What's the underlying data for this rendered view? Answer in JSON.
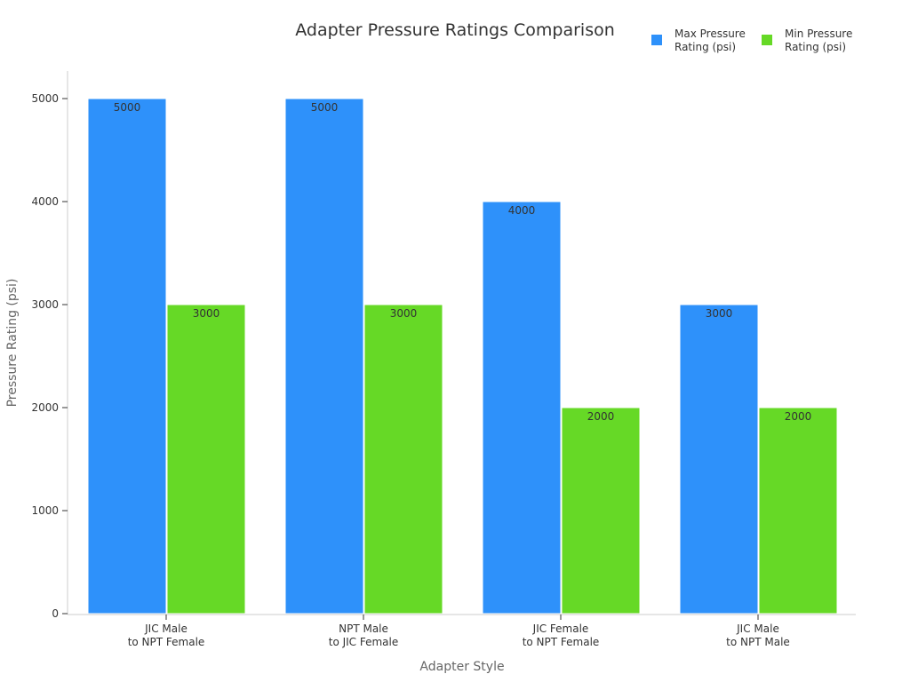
{
  "chart_data": {
    "type": "bar",
    "title": "Adapter Pressure Ratings Comparison",
    "xlabel": "Adapter Style",
    "ylabel": "Pressure Rating (psi)",
    "categories": [
      [
        "JIC Male",
        "to NPT Female"
      ],
      [
        "NPT Male",
        "to JIC Female"
      ],
      [
        "JIC Female",
        "to NPT Female"
      ],
      [
        "JIC Male",
        "to NPT Male"
      ]
    ],
    "series": [
      {
        "name": [
          "Max Pressure",
          "Rating (psi)"
        ],
        "values": [
          5000,
          5000,
          4000,
          3000
        ],
        "color": "#2E91FA"
      },
      {
        "name": [
          "Min Pressure",
          "Rating (psi)"
        ],
        "values": [
          3000,
          3000,
          2000,
          2000
        ],
        "color": "#66D926"
      }
    ],
    "ylim": [
      0,
      5000
    ],
    "yticks": [
      0,
      1000,
      2000,
      3000,
      4000,
      5000
    ],
    "grid": false,
    "legend": "top-right"
  }
}
